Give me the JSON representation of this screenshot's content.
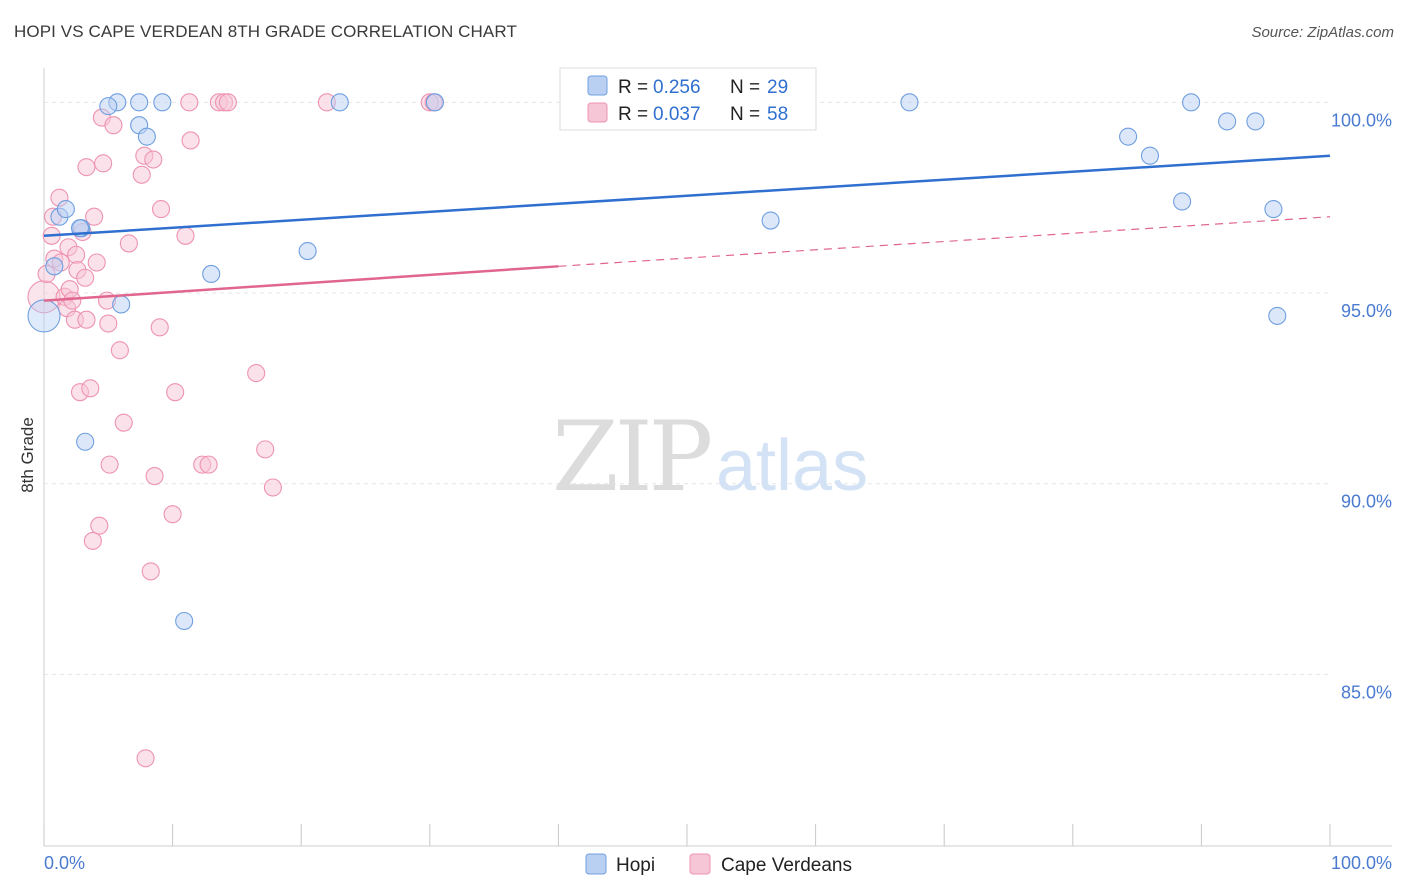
{
  "title": "HOPI VS CAPE VERDEAN 8TH GRADE CORRELATION CHART",
  "source": "Source: ZipAtlas.com",
  "watermark": {
    "zip": "ZIP",
    "atlas": "atlas"
  },
  "colors": {
    "hopi": "#6f9fe0",
    "hopi_fill": "#b9d0f3",
    "hopi_line": "#2f6fd0",
    "cape": "#ee93b0",
    "cape_fill": "#f7c6d6",
    "cape_line": "#e0668f",
    "tick": "#4a7bd0"
  },
  "chart_data": {
    "type": "scatter",
    "title": "HOPI VS CAPE VERDEAN 8TH GRADE CORRELATION CHART",
    "ylabel": "8th Grade",
    "xlabel": "",
    "xlim": [
      0,
      100
    ],
    "ylim": [
      80.5,
      100.9
    ],
    "x_tick_labels": {
      "left": "0.0%",
      "right": "100.0%"
    },
    "y_ticks": [
      {
        "value": 100,
        "label": "100.0%"
      },
      {
        "value": 95,
        "label": "95.0%"
      },
      {
        "value": 90,
        "label": "90.0%"
      },
      {
        "value": 85,
        "label": "85.0%"
      }
    ],
    "legend": [
      {
        "r_label": "R = ",
        "r": "0.256",
        "n_label": "N = ",
        "n": "29"
      },
      {
        "r_label": "R = ",
        "r": "0.037",
        "n_label": "N = ",
        "n": "58"
      }
    ],
    "series": [
      {
        "name": "Hopi",
        "color": "#6f9fe0",
        "trend": {
          "x0": 0,
          "y0": 96.5,
          "x1": 100,
          "y1": 98.6
        },
        "points": [
          {
            "x": 0.0,
            "y": 94.4,
            "big": true
          },
          {
            "x": 0.8,
            "y": 95.7
          },
          {
            "x": 1.2,
            "y": 97.0
          },
          {
            "x": 1.7,
            "y": 97.2
          },
          {
            "x": 2.9,
            "y": 96.7
          },
          {
            "x": 3.2,
            "y": 91.1
          },
          {
            "x": 5.7,
            "y": 100.0
          },
          {
            "x": 6.0,
            "y": 94.7
          },
          {
            "x": 5.0,
            "y": 99.9
          },
          {
            "x": 7.4,
            "y": 100.0
          },
          {
            "x": 7.4,
            "y": 99.4
          },
          {
            "x": 8.0,
            "y": 99.1
          },
          {
            "x": 9.2,
            "y": 100.0
          },
          {
            "x": 10.9,
            "y": 86.4
          },
          {
            "x": 13.0,
            "y": 95.5
          },
          {
            "x": 20.5,
            "y": 96.1
          },
          {
            "x": 23.0,
            "y": 100.0
          },
          {
            "x": 30.4,
            "y": 100.0
          },
          {
            "x": 56.5,
            "y": 96.9
          },
          {
            "x": 67.3,
            "y": 100.0
          },
          {
            "x": 84.3,
            "y": 99.1
          },
          {
            "x": 86.0,
            "y": 98.6
          },
          {
            "x": 88.5,
            "y": 97.4
          },
          {
            "x": 89.2,
            "y": 100.0
          },
          {
            "x": 92.0,
            "y": 99.5
          },
          {
            "x": 94.2,
            "y": 99.5
          },
          {
            "x": 95.6,
            "y": 97.2
          },
          {
            "x": 95.9,
            "y": 94.4
          },
          {
            "x": 2.8,
            "y": 96.7
          }
        ]
      },
      {
        "name": "Cape Verdeans",
        "color": "#ee93b0",
        "trend": {
          "x0": 0,
          "y0": 94.8,
          "x1": 40,
          "y1": 95.7,
          "dash_to_x": 100,
          "dash_to_y": 97.0
        },
        "points": [
          {
            "x": 0.0,
            "y": 94.9,
            "big": true
          },
          {
            "x": 0.2,
            "y": 95.5
          },
          {
            "x": 0.6,
            "y": 96.5
          },
          {
            "x": 0.7,
            "y": 97.0
          },
          {
            "x": 0.8,
            "y": 95.9
          },
          {
            "x": 1.2,
            "y": 97.5
          },
          {
            "x": 1.3,
            "y": 95.8
          },
          {
            "x": 1.6,
            "y": 94.9
          },
          {
            "x": 1.8,
            "y": 94.6
          },
          {
            "x": 1.9,
            "y": 96.2
          },
          {
            "x": 2.0,
            "y": 95.1
          },
          {
            "x": 2.2,
            "y": 94.8
          },
          {
            "x": 2.4,
            "y": 94.3
          },
          {
            "x": 2.5,
            "y": 96.0
          },
          {
            "x": 2.6,
            "y": 95.6
          },
          {
            "x": 2.8,
            "y": 92.4
          },
          {
            "x": 3.0,
            "y": 96.6
          },
          {
            "x": 3.2,
            "y": 95.4
          },
          {
            "x": 3.3,
            "y": 94.3
          },
          {
            "x": 3.3,
            "y": 98.3
          },
          {
            "x": 3.6,
            "y": 92.5
          },
          {
            "x": 3.8,
            "y": 88.5
          },
          {
            "x": 3.9,
            "y": 97.0
          },
          {
            "x": 4.1,
            "y": 95.8
          },
          {
            "x": 4.3,
            "y": 88.9
          },
          {
            "x": 4.5,
            "y": 99.6
          },
          {
            "x": 4.6,
            "y": 98.4
          },
          {
            "x": 4.9,
            "y": 94.8
          },
          {
            "x": 5.0,
            "y": 94.2
          },
          {
            "x": 5.1,
            "y": 90.5
          },
          {
            "x": 5.4,
            "y": 99.4
          },
          {
            "x": 5.9,
            "y": 93.5
          },
          {
            "x": 6.2,
            "y": 91.6
          },
          {
            "x": 6.6,
            "y": 96.3
          },
          {
            "x": 7.6,
            "y": 98.1
          },
          {
            "x": 7.8,
            "y": 98.6
          },
          {
            "x": 8.3,
            "y": 87.7
          },
          {
            "x": 8.5,
            "y": 98.5
          },
          {
            "x": 8.6,
            "y": 90.2
          },
          {
            "x": 9.0,
            "y": 94.1
          },
          {
            "x": 9.1,
            "y": 97.2
          },
          {
            "x": 10.0,
            "y": 89.2
          },
          {
            "x": 10.2,
            "y": 92.4
          },
          {
            "x": 11.0,
            "y": 96.5
          },
          {
            "x": 11.4,
            "y": 99.0
          },
          {
            "x": 11.3,
            "y": 100.0
          },
          {
            "x": 12.3,
            "y": 90.5
          },
          {
            "x": 12.8,
            "y": 90.5
          },
          {
            "x": 13.6,
            "y": 100.0
          },
          {
            "x": 14.0,
            "y": 100.0
          },
          {
            "x": 14.3,
            "y": 100.0
          },
          {
            "x": 16.5,
            "y": 92.9
          },
          {
            "x": 17.2,
            "y": 90.9
          },
          {
            "x": 17.8,
            "y": 89.9
          },
          {
            "x": 22.0,
            "y": 100.0
          },
          {
            "x": 30.0,
            "y": 100.0
          },
          {
            "x": 30.3,
            "y": 100.0
          },
          {
            "x": 7.9,
            "y": 82.8
          }
        ]
      }
    ]
  }
}
